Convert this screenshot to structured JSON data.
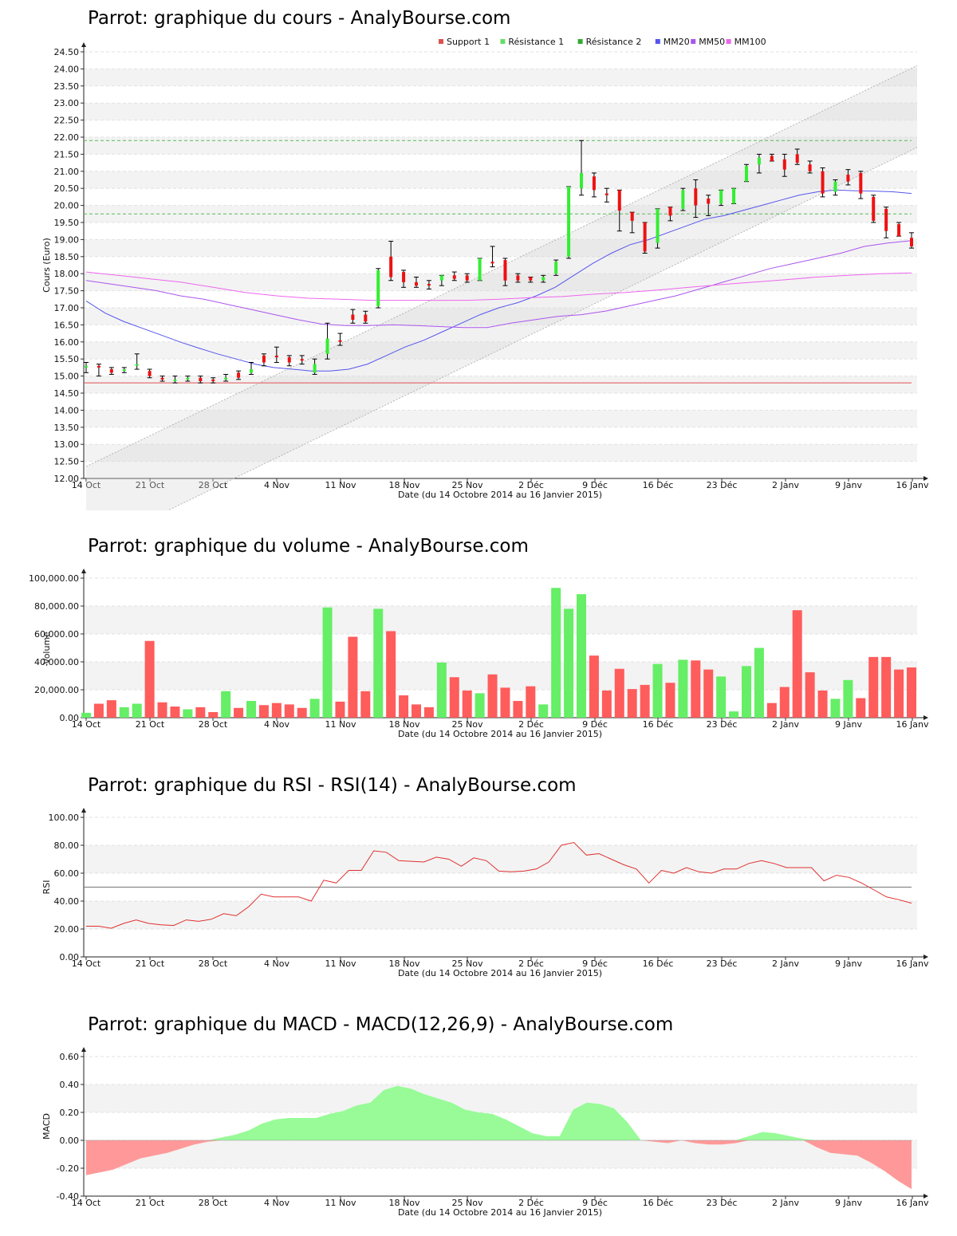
{
  "chart_data": [
    {
      "type": "candlestick",
      "title": "Parrot: graphique du cours - AnalyBourse.com",
      "xlabel": "Date (du 14 Octobre 2014 au 16 Janvier 2015)",
      "ylabel": "Cours (Euro)",
      "ylim": [
        12.0,
        24.5
      ],
      "yticks": [
        "12.00",
        "12.50",
        "13.00",
        "13.50",
        "14.00",
        "14.50",
        "15.00",
        "15.50",
        "16.00",
        "16.50",
        "17.00",
        "17.50",
        "18.00",
        "18.50",
        "19.00",
        "19.50",
        "20.00",
        "20.50",
        "21.00",
        "21.50",
        "22.00",
        "22.50",
        "23.00",
        "23.50",
        "24.00",
        "24.50"
      ],
      "xticks": [
        "14 Oct",
        "21 Oct",
        "28 Oct",
        "4 Nov",
        "11 Nov",
        "18 Nov",
        "25 Nov",
        "2 Déc",
        "9 Déc",
        "16 Déc",
        "23 Déc",
        "2 Janv",
        "9 Janv",
        "16 Janv"
      ],
      "legend": [
        "Support 1",
        "Résistance 1",
        "Résistance 2",
        "MM20",
        "MM50",
        "MM100"
      ],
      "legend_colors": [
        "#d9534f",
        "#66dd66",
        "#33aa33",
        "#5555ee",
        "#aa55ee",
        "#ee66ee"
      ],
      "legend_position": "top-center",
      "support_1": 14.8,
      "resistance_1": 19.75,
      "resistance_2": 21.9,
      "up_color": "#33ee33",
      "down_color": "#ee1111",
      "candles": [
        [
          15.3,
          15.4,
          15.1,
          15.3
        ],
        [
          15.3,
          15.35,
          15.0,
          15.25
        ],
        [
          15.2,
          15.25,
          15.05,
          15.1
        ],
        [
          15.15,
          15.25,
          15.1,
          15.2
        ],
        [
          15.3,
          15.65,
          15.2,
          15.35
        ],
        [
          15.15,
          15.2,
          14.95,
          15.0
        ],
        [
          14.95,
          15.0,
          14.85,
          14.9
        ],
        [
          14.9,
          15.0,
          14.8,
          14.9
        ],
        [
          14.9,
          15.0,
          14.85,
          14.95
        ],
        [
          14.95,
          15.0,
          14.8,
          14.85
        ],
        [
          14.9,
          14.95,
          14.8,
          14.85
        ],
        [
          14.95,
          15.05,
          14.85,
          14.95
        ],
        [
          15.1,
          15.15,
          14.9,
          14.95
        ],
        [
          15.1,
          15.4,
          15.05,
          15.2
        ],
        [
          15.6,
          15.65,
          15.3,
          15.4
        ],
        [
          15.6,
          15.85,
          15.4,
          15.55
        ],
        [
          15.55,
          15.6,
          15.3,
          15.4
        ],
        [
          15.5,
          15.6,
          15.35,
          15.45
        ],
        [
          15.1,
          15.5,
          15.05,
          15.35
        ],
        [
          15.65,
          16.55,
          15.5,
          16.1
        ],
        [
          16.05,
          16.25,
          15.9,
          16.0
        ],
        [
          16.8,
          16.95,
          16.55,
          16.65
        ],
        [
          16.8,
          16.9,
          16.55,
          16.6
        ],
        [
          17.05,
          18.15,
          17.0,
          18.1
        ],
        [
          18.5,
          18.95,
          17.8,
          17.9
        ],
        [
          18.05,
          18.1,
          17.6,
          17.75
        ],
        [
          17.75,
          17.9,
          17.6,
          17.65
        ],
        [
          17.7,
          17.8,
          17.55,
          17.65
        ],
        [
          17.8,
          17.95,
          17.65,
          17.95
        ],
        [
          17.95,
          18.05,
          17.8,
          17.85
        ],
        [
          17.95,
          18.0,
          17.75,
          17.8
        ],
        [
          17.8,
          18.45,
          17.8,
          18.45
        ],
        [
          18.35,
          18.8,
          18.2,
          18.3
        ],
        [
          18.4,
          18.45,
          17.65,
          17.8
        ],
        [
          17.95,
          18.0,
          17.75,
          17.8
        ],
        [
          17.9,
          17.9,
          17.75,
          17.8
        ],
        [
          17.8,
          17.95,
          17.75,
          17.9
        ],
        [
          18.0,
          18.4,
          17.95,
          18.35
        ],
        [
          18.5,
          20.55,
          18.45,
          20.55
        ],
        [
          20.5,
          21.9,
          20.3,
          20.95
        ],
        [
          20.85,
          20.95,
          20.25,
          20.45
        ],
        [
          20.35,
          20.5,
          20.1,
          20.3
        ],
        [
          20.45,
          20.45,
          19.25,
          19.85
        ],
        [
          19.8,
          19.8,
          19.2,
          19.55
        ],
        [
          19.5,
          19.5,
          18.6,
          18.65
        ],
        [
          18.9,
          19.9,
          18.75,
          19.9
        ],
        [
          19.95,
          19.95,
          19.55,
          19.7
        ],
        [
          19.9,
          20.5,
          19.85,
          20.45
        ],
        [
          20.5,
          20.75,
          19.65,
          20.0
        ],
        [
          20.2,
          20.3,
          19.7,
          20.05
        ],
        [
          20.05,
          20.45,
          20.0,
          20.45
        ],
        [
          20.05,
          20.5,
          20.05,
          20.5
        ],
        [
          20.7,
          21.2,
          20.7,
          21.15
        ],
        [
          21.2,
          21.5,
          20.95,
          21.4
        ],
        [
          21.45,
          21.5,
          21.3,
          21.3
        ],
        [
          21.35,
          21.5,
          20.85,
          21.05
        ],
        [
          21.5,
          21.65,
          21.2,
          21.25
        ],
        [
          21.2,
          21.3,
          20.95,
          21.0
        ],
        [
          21.0,
          21.1,
          20.25,
          20.35
        ],
        [
          20.4,
          20.75,
          20.3,
          20.7
        ],
        [
          20.9,
          21.05,
          20.6,
          20.7
        ],
        [
          20.95,
          21.0,
          20.2,
          20.35
        ],
        [
          20.25,
          20.3,
          19.5,
          19.55
        ],
        [
          19.9,
          19.95,
          19.05,
          19.25
        ],
        [
          19.45,
          19.5,
          19.1,
          19.1
        ],
        [
          19.05,
          19.2,
          18.75,
          18.8
        ]
      ],
      "series": [
        {
          "name": "MM20",
          "values": [
            17.2,
            16.85,
            16.6,
            16.4,
            16.2,
            16.0,
            15.82,
            15.65,
            15.5,
            15.35,
            15.25,
            15.2,
            15.15,
            15.15,
            15.2,
            15.35,
            15.6,
            15.85,
            16.05,
            16.3,
            16.55,
            16.8,
            17.0,
            17.15,
            17.35,
            17.6,
            17.95,
            18.3,
            18.6,
            18.85,
            19.0,
            19.2,
            19.4,
            19.6,
            19.7,
            19.85,
            20.0,
            20.15,
            20.3,
            20.4,
            20.45,
            20.43,
            20.42,
            20.4,
            20.35
          ]
        },
        {
          "name": "MM50",
          "values": [
            17.8,
            17.7,
            17.6,
            17.5,
            17.35,
            17.25,
            17.1,
            16.95,
            16.8,
            16.65,
            16.52,
            16.48,
            16.48,
            16.5,
            16.48,
            16.45,
            16.42,
            16.42,
            16.55,
            16.65,
            16.75,
            16.8,
            16.9,
            17.05,
            17.2,
            17.35,
            17.55,
            17.75,
            17.95,
            18.15,
            18.3,
            18.45,
            18.6,
            18.8,
            18.9,
            18.97
          ]
        },
        {
          "name": "MM100",
          "values": [
            18.05,
            17.95,
            17.85,
            17.75,
            17.6,
            17.45,
            17.35,
            17.28,
            17.25,
            17.22,
            17.22,
            17.22,
            17.22,
            17.25,
            17.3,
            17.33,
            17.4,
            17.45,
            17.52,
            17.6,
            17.68,
            17.75,
            17.82,
            17.9,
            17.95,
            18.0,
            18.02
          ]
        }
      ]
    },
    {
      "type": "bar",
      "title": "Parrot: graphique du volume - AnalyBourse.com",
      "xlabel": "Date (du 14 Octobre 2014 au 16 Janvier 2015)",
      "ylabel": "Volume",
      "ylim": [
        0,
        100000
      ],
      "yticks": [
        "0.00",
        "20,000.00",
        "40,000.00",
        "60,000.00",
        "80,000.00",
        "100,000.00"
      ],
      "xticks": [
        "14 Oct",
        "21 Oct",
        "28 Oct",
        "4 Nov",
        "11 Nov",
        "18 Nov",
        "25 Nov",
        "2 Déc",
        "9 Déc",
        "16 Déc",
        "23 Déc",
        "2 Janv",
        "9 Janv",
        "16 Janv"
      ],
      "up_color": "#66ee66",
      "down_color": "#ff5c5c",
      "values": [
        3500,
        10000,
        12500,
        7500,
        10000,
        55000,
        11000,
        8000,
        6000,
        7500,
        4000,
        19000,
        7000,
        12000,
        9000,
        10500,
        9500,
        7000,
        13500,
        79000,
        11500,
        58000,
        19000,
        78000,
        62000,
        16000,
        9500,
        7500,
        39500,
        29000,
        19500,
        17500,
        31000,
        21500,
        12000,
        22500,
        9500,
        93000,
        78000,
        88500,
        44500,
        19500,
        35000,
        20500,
        23500,
        38500,
        25000,
        41500,
        41000,
        34500,
        29500,
        4500,
        37000,
        50000,
        10500,
        22000,
        77000,
        32500,
        19500,
        13500,
        27000,
        14000,
        43500,
        43500,
        34500,
        36000
      ],
      "colors_up": [
        1,
        0,
        0,
        1,
        1,
        0,
        0,
        0,
        1,
        0,
        0,
        1,
        0,
        1,
        0,
        0,
        0,
        0,
        1,
        1,
        0,
        0,
        0,
        1,
        0,
        0,
        0,
        0,
        1,
        0,
        0,
        1,
        0,
        0,
        0,
        0,
        1,
        1,
        1,
        1,
        0,
        0,
        0,
        0,
        0,
        1,
        0,
        1,
        0,
        0,
        1,
        1,
        1,
        1,
        0,
        0,
        0,
        0,
        0,
        1,
        1,
        0,
        0,
        0,
        0,
        0
      ]
    },
    {
      "type": "line",
      "title": "Parrot: graphique du RSI - RSI(14) - AnalyBourse.com",
      "xlabel": "Date (du 14 Octobre 2014 au 16 Janvier 2015)",
      "ylabel": "RSI",
      "ylim": [
        0,
        100
      ],
      "yticks": [
        "0.00",
        "20.00",
        "40.00",
        "60.00",
        "80.00",
        "100.00"
      ],
      "xticks": [
        "14 Oct",
        "21 Oct",
        "28 Oct",
        "4 Nov",
        "11 Nov",
        "18 Nov",
        "25 Nov",
        "2 Déc",
        "9 Déc",
        "16 Déc",
        "23 Déc",
        "2 Janv",
        "9 Janv",
        "16 Janv"
      ],
      "reference": 50,
      "series": [
        {
          "values": [
            22,
            22,
            20.5,
            24,
            26.5,
            24,
            23,
            22.5,
            26.5,
            25.5,
            27,
            31,
            29.5,
            36,
            45,
            43,
            43,
            43,
            40,
            55,
            53,
            62,
            62,
            76,
            75,
            69,
            68.5,
            68,
            71.5,
            70,
            65,
            71,
            69,
            61.5,
            61,
            61.5,
            63,
            68,
            80,
            82,
            73,
            74,
            70,
            66,
            63,
            53,
            62,
            60,
            64,
            61,
            60,
            63,
            63,
            67,
            69,
            67,
            64,
            64,
            64,
            54.5,
            58.5,
            57,
            53,
            48,
            43,
            41,
            38.5
          ]
        }
      ]
    },
    {
      "type": "area",
      "title": "Parrot: graphique du MACD - MACD(12,26,9) - AnalyBourse.com",
      "xlabel": "Date (du 14 Octobre 2014 au 16 Janvier 2015)",
      "ylabel": "MACD",
      "ylim": [
        -0.4,
        0.6
      ],
      "yticks": [
        "-0.40",
        "-0.20",
        "0.00",
        "0.20",
        "0.40",
        "0.60"
      ],
      "xticks": [
        "14 Oct",
        "21 Oct",
        "28 Oct",
        "4 Nov",
        "11 Nov",
        "18 Nov",
        "25 Nov",
        "2 Déc",
        "9 Déc",
        "16 Déc",
        "23 Déc",
        "2 Janv",
        "9 Janv",
        "16 Janv"
      ],
      "positive_color": "#98fb98",
      "negative_color": "#ff9999",
      "series": [
        {
          "values": [
            -0.25,
            -0.23,
            -0.21,
            -0.17,
            -0.13,
            -0.11,
            -0.09,
            -0.06,
            -0.03,
            -0.01,
            0.02,
            0.04,
            0.07,
            0.12,
            0.15,
            0.16,
            0.16,
            0.16,
            0.19,
            0.21,
            0.25,
            0.27,
            0.36,
            0.39,
            0.37,
            0.33,
            0.3,
            0.27,
            0.22,
            0.2,
            0.19,
            0.15,
            0.1,
            0.05,
            0.03,
            0.03,
            0.22,
            0.27,
            0.26,
            0.23,
            0.13,
            0.0,
            -0.01,
            -0.02,
            0.0,
            -0.02,
            -0.03,
            -0.03,
            -0.02,
            0.03,
            0.06,
            0.05,
            0.03,
            0.01,
            -0.05,
            -0.09,
            -0.1,
            -0.11,
            -0.16,
            -0.22,
            -0.29,
            -0.35
          ]
        }
      ]
    }
  ]
}
